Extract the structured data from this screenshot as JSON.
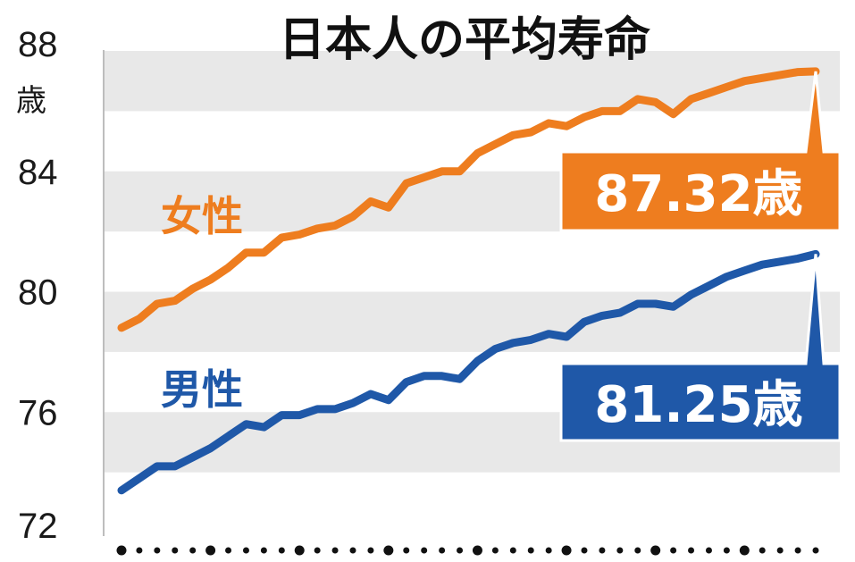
{
  "chart_data": {
    "type": "line",
    "title": "日本人の平均寿命",
    "ylabel_unit": "歳",
    "ylim": [
      72,
      88
    ],
    "yticks": [
      "88",
      "84",
      "80",
      "76",
      "72"
    ],
    "grid": "alternating horizontal bands",
    "x": [
      1,
      2,
      3,
      4,
      5,
      6,
      7,
      8,
      9,
      10,
      11,
      12,
      13,
      14,
      15,
      16,
      17,
      18,
      19,
      20,
      21,
      22,
      23,
      24,
      25,
      26,
      27,
      28,
      29,
      30,
      31,
      32,
      33,
      34,
      35,
      36,
      37,
      38,
      39,
      40
    ],
    "series": [
      {
        "name": "女性",
        "color": "#ee7d1f",
        "values": [
          78.8,
          79.1,
          79.6,
          79.7,
          80.1,
          80.4,
          80.8,
          81.3,
          81.3,
          81.8,
          81.9,
          82.1,
          82.2,
          82.5,
          83.0,
          82.8,
          83.6,
          83.8,
          84.0,
          84.0,
          84.6,
          84.9,
          85.2,
          85.3,
          85.6,
          85.5,
          85.8,
          86.0,
          86.0,
          86.4,
          86.3,
          85.9,
          86.4,
          86.6,
          86.8,
          87.0,
          87.1,
          87.2,
          87.3,
          87.32
        ]
      },
      {
        "name": "男性",
        "color": "#1f58a8",
        "values": [
          73.4,
          73.8,
          74.2,
          74.2,
          74.5,
          74.8,
          75.2,
          75.6,
          75.5,
          75.9,
          75.9,
          76.1,
          76.1,
          76.3,
          76.6,
          76.4,
          77.0,
          77.2,
          77.2,
          77.1,
          77.7,
          78.1,
          78.3,
          78.4,
          78.6,
          78.5,
          79.0,
          79.2,
          79.3,
          79.6,
          79.6,
          79.5,
          79.9,
          80.2,
          80.5,
          80.7,
          80.9,
          81.0,
          81.1,
          81.25
        ]
      }
    ],
    "callouts": {
      "female": "87.32歳",
      "male": "81.25歳"
    },
    "x_markers": 40
  }
}
